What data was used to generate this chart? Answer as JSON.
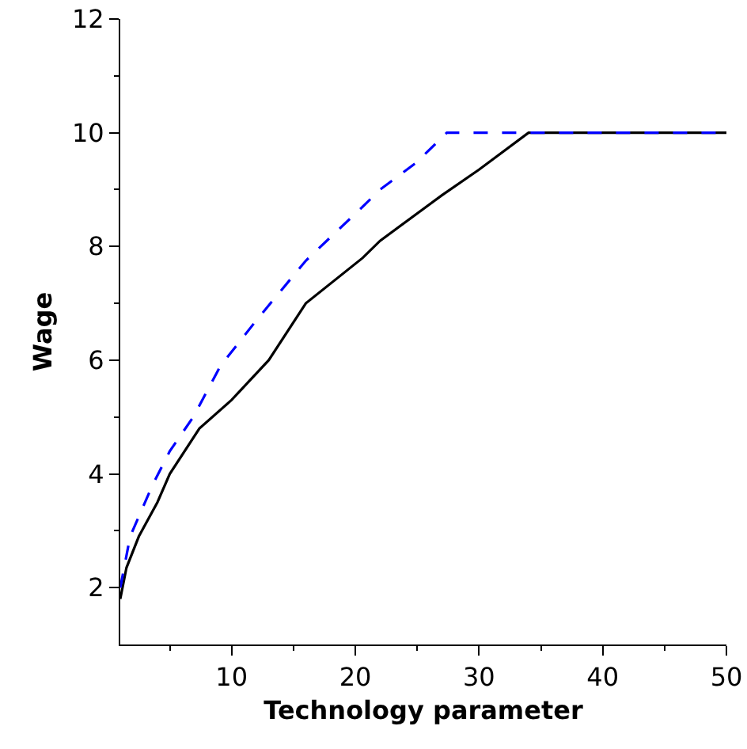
{
  "chart_data": {
    "type": "line",
    "xlabel": "Technology parameter",
    "ylabel": "Wage",
    "xlim": [
      1,
      50
    ],
    "ylim": [
      1,
      12
    ],
    "xticks": [
      10,
      20,
      30,
      40,
      50
    ],
    "yticks": [
      2,
      4,
      6,
      8,
      10,
      12
    ],
    "grid": false,
    "marker": "none",
    "series": [
      {
        "color": "#000000",
        "line_style": "solid",
        "x": [
          1,
          1.5,
          2.5,
          4,
          5,
          7.4,
          10,
          13,
          16,
          20.6,
          22,
          27,
          30,
          34,
          50
        ],
        "values": [
          1.8,
          2.35,
          2.9,
          3.5,
          4.0,
          4.8,
          5.3,
          6.0,
          7.0,
          7.8,
          8.1,
          8.9,
          9.35,
          10,
          10
        ]
      },
      {
        "color": "#0000ff",
        "line_style": "dashed",
        "x": [
          1,
          1.8,
          3.6,
          5,
          6.9,
          9.1,
          12,
          16,
          20.6,
          22,
          24.9,
          27.4,
          50
        ],
        "values": [
          2.0,
          2.9,
          3.8,
          4.4,
          5.0,
          5.9,
          6.7,
          7.75,
          8.7,
          9.0,
          9.47,
          10,
          10
        ]
      }
    ]
  }
}
